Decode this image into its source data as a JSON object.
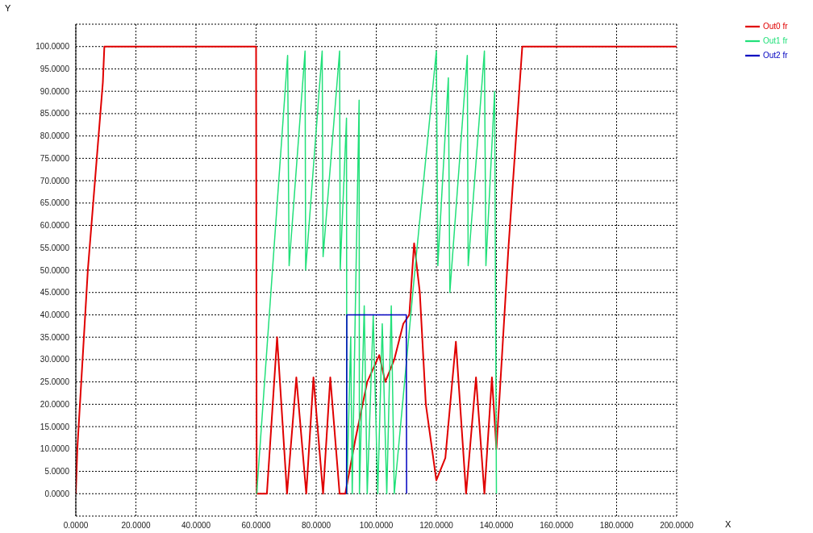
{
  "chart_data": {
    "type": "line",
    "xlabel": "X",
    "ylabel": "Y",
    "xlim": [
      0,
      200
    ],
    "ylim": [
      -5,
      105
    ],
    "xticks": [
      {
        "value": 0,
        "label": "0.0000"
      },
      {
        "value": 20,
        "label": "20.0000"
      },
      {
        "value": 40,
        "label": "40.0000"
      },
      {
        "value": 60,
        "label": "60.0000"
      },
      {
        "value": 80,
        "label": "80.0000"
      },
      {
        "value": 100,
        "label": "100.0000"
      },
      {
        "value": 120,
        "label": "120.0000"
      },
      {
        "value": 140,
        "label": "140.0000"
      },
      {
        "value": 160,
        "label": "160.0000"
      },
      {
        "value": 180,
        "label": "180.0000"
      },
      {
        "value": 200,
        "label": "200.0000"
      }
    ],
    "yticks": [
      {
        "value": 0,
        "label": "0.0000"
      },
      {
        "value": 5,
        "label": "5.0000"
      },
      {
        "value": 10,
        "label": "10.0000"
      },
      {
        "value": 15,
        "label": "15.0000"
      },
      {
        "value": 20,
        "label": "20.0000"
      },
      {
        "value": 25,
        "label": "25.0000"
      },
      {
        "value": 30,
        "label": "30.0000"
      },
      {
        "value": 35,
        "label": "35.0000"
      },
      {
        "value": 40,
        "label": "40.0000"
      },
      {
        "value": 45,
        "label": "45.0000"
      },
      {
        "value": 50,
        "label": "50.0000"
      },
      {
        "value": 55,
        "label": "55.0000"
      },
      {
        "value": 60,
        "label": "60.0000"
      },
      {
        "value": 65,
        "label": "65.0000"
      },
      {
        "value": 70,
        "label": "70.0000"
      },
      {
        "value": 75,
        "label": "75.0000"
      },
      {
        "value": 80,
        "label": "80.0000"
      },
      {
        "value": 85,
        "label": "85.0000"
      },
      {
        "value": 90,
        "label": "90.0000"
      },
      {
        "value": 95,
        "label": "95.0000"
      },
      {
        "value": 100,
        "label": "100.0000"
      }
    ],
    "grid": true,
    "legend": "top right",
    "line_style": "solid",
    "marker": "none",
    "series": [
      {
        "name": "Out0 fr",
        "color": "#e00000",
        "x": [
          0,
          0.5,
          4,
          9,
          9.5,
          60,
          60.2,
          63.6,
          67,
          70.3,
          73.4,
          76.7,
          79.1,
          82.3,
          84.7,
          87.8,
          89.7,
          93,
          97,
          101,
          103,
          106,
          109,
          111,
          112.6,
          114.5,
          116.5,
          120,
          123,
          126.5,
          129.9,
          133.2,
          136,
          138.5,
          140,
          144,
          148.6,
          200
        ],
        "values": [
          0,
          10,
          50,
          92,
          100,
          100,
          0,
          0,
          35,
          0,
          26,
          0,
          26,
          0,
          26,
          0,
          0,
          12,
          25,
          31,
          25,
          30,
          38,
          40,
          56,
          45,
          20,
          3,
          8,
          34,
          0,
          26,
          0,
          26,
          10,
          55,
          100,
          100
        ]
      },
      {
        "name": "Out1 fr",
        "color": "#22e07a",
        "x": [
          60,
          60.2,
          70.5,
          71,
          76.3,
          76.5,
          82,
          82.3,
          87.8,
          88,
          90.1,
          90.2,
          91.5,
          92,
          93,
          94.3,
          94.4,
          96,
          97,
          99,
          100.5,
          102,
          103.5,
          105,
          106,
          113,
          120,
          120.5,
          124,
          124.5,
          130.3,
          130.6,
          136,
          136.5,
          139.4,
          140
        ],
        "values": [
          0,
          0,
          98,
          51,
          99,
          50,
          99,
          53,
          99,
          50,
          84,
          0,
          35,
          0,
          40,
          88,
          0,
          42,
          0,
          40,
          0,
          38,
          0,
          42,
          0,
          51,
          99,
          51,
          93,
          45,
          98,
          51,
          99,
          51,
          90,
          0
        ]
      },
      {
        "name": "Out2 fr",
        "color": "#0000c0",
        "x": [
          90,
          90.1,
          90.2,
          109.3,
          110,
          110.1
        ],
        "values": [
          0,
          0,
          40,
          40,
          40,
          0
        ]
      }
    ]
  }
}
